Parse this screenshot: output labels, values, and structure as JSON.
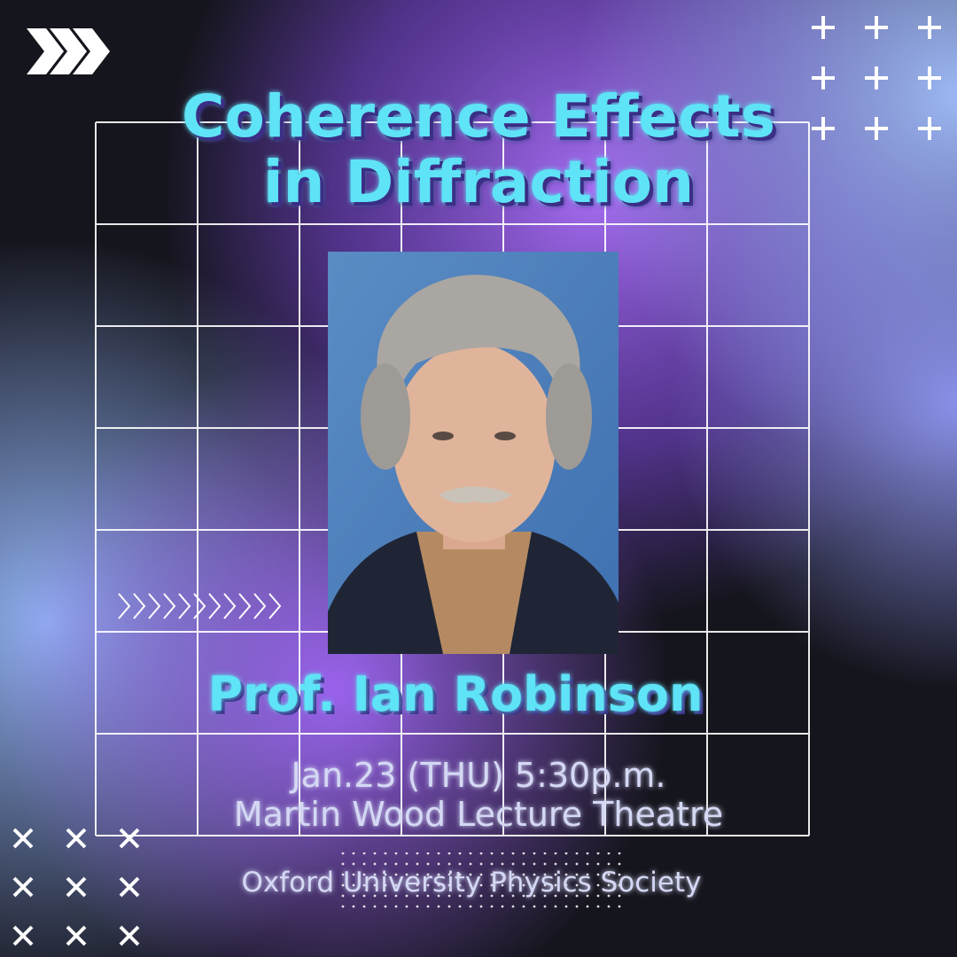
{
  "title": [
    "Coherence Effects",
    "in Diffraction"
  ],
  "speaker": "Prof. Ian Robinson",
  "event": {
    "date": "Jan.23 (THU) 5:30p.m.",
    "venue": "Martin Wood Lecture Theatre"
  },
  "organizer": "Oxford University Physics Society"
}
